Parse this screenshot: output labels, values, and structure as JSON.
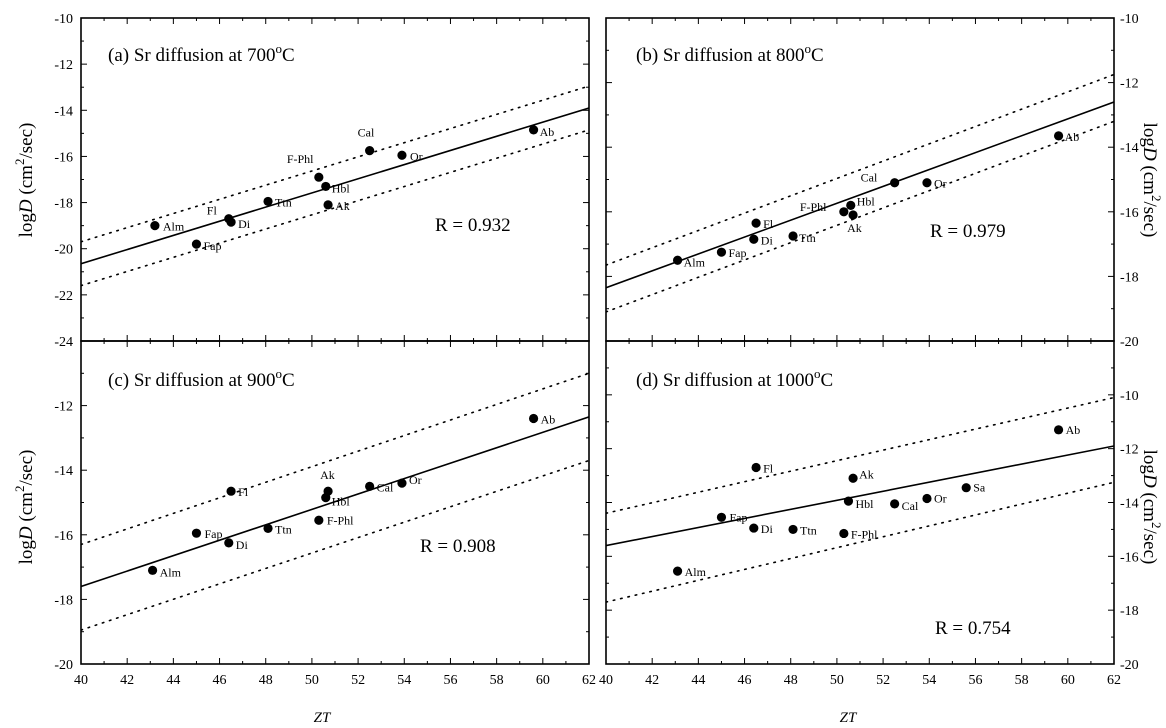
{
  "figure": {
    "xlabel_left": "ZT",
    "xlabel_right": "ZT",
    "ylabel": "logD (cm²/sec)",
    "ylabel_parts": {
      "log": "log",
      "D": "D",
      "unit": " (cm",
      "sup": "2",
      "end": "/sec)"
    },
    "title_prefix": "Sr diffusion at ",
    "degree": "o"
  },
  "chart_data": [
    {
      "type": "scatter",
      "panel": "a",
      "title": "(a) Sr diffusion at 700°C",
      "title_parts": {
        "prefix": "(a) Sr diffusion at 700",
        "sup": "o",
        "suffix": "C"
      },
      "xlabel": "ZT",
      "ylabel": "logD (cm²/sec)",
      "xlim": [
        40,
        62
      ],
      "ylim": [
        -24,
        -10
      ],
      "yticks": [
        -24,
        -22,
        -20,
        -18,
        -16,
        -14,
        -12,
        -10
      ],
      "xticks": [
        40,
        42,
        44,
        46,
        48,
        50,
        52,
        54,
        56,
        58,
        60,
        62
      ],
      "r_text": "R = 0.932",
      "points": [
        {
          "label": "Alm",
          "x": 43.2,
          "y": -19.0
        },
        {
          "label": "Fl",
          "x": 46.4,
          "y": -18.7
        },
        {
          "label": "Di",
          "x": 46.5,
          "y": -18.85
        },
        {
          "label": "Fap",
          "x": 45.0,
          "y": -19.8
        },
        {
          "label": "Ttn",
          "x": 48.1,
          "y": -17.95
        },
        {
          "label": "F-Phl",
          "x": 50.3,
          "y": -16.9
        },
        {
          "label": "Hbl",
          "x": 50.6,
          "y": -17.3
        },
        {
          "label": "Ak",
          "x": 50.7,
          "y": -18.1
        },
        {
          "label": "Cal",
          "x": 52.5,
          "y": -15.75
        },
        {
          "label": "Or",
          "x": 53.9,
          "y": -15.95
        },
        {
          "label": "Ab",
          "x": 59.6,
          "y": -14.85
        }
      ],
      "fit_line": {
        "y_at_40": -20.65,
        "y_at_62": -13.9
      },
      "bounds_upper": {
        "y_at_40": -19.7,
        "y_at_62": -12.95
      },
      "bounds_lower": {
        "y_at_40": -21.6,
        "y_at_62": -14.85
      }
    },
    {
      "type": "scatter",
      "panel": "b",
      "title": "(b) Sr diffusion at 800°C",
      "title_parts": {
        "prefix": "(b) Sr diffusion at 800",
        "sup": "o",
        "suffix": "C"
      },
      "xlabel": "ZT",
      "ylabel": "logD (cm²/sec)",
      "xlim": [
        40,
        62
      ],
      "ylim": [
        -20,
        -10
      ],
      "yticks": [
        -20,
        -18,
        -16,
        -14,
        -12,
        -10
      ],
      "xticks": [
        40,
        42,
        44,
        46,
        48,
        50,
        52,
        54,
        56,
        58,
        60,
        62
      ],
      "r_text": "R = 0.979",
      "points": [
        {
          "label": "Alm",
          "x": 43.1,
          "y": -17.5
        },
        {
          "label": "Fap",
          "x": 45.0,
          "y": -17.25
        },
        {
          "label": "Di",
          "x": 46.4,
          "y": -16.85
        },
        {
          "label": "Fl",
          "x": 46.5,
          "y": -16.35
        },
        {
          "label": "Ttn",
          "x": 48.1,
          "y": -16.75
        },
        {
          "label": "F-Phl",
          "x": 50.3,
          "y": -16.0
        },
        {
          "label": "Hbl",
          "x": 50.6,
          "y": -15.8
        },
        {
          "label": "Ak",
          "x": 50.7,
          "y": -16.1
        },
        {
          "label": "Cal",
          "x": 52.5,
          "y": -15.1
        },
        {
          "label": "Or",
          "x": 53.9,
          "y": -15.1
        },
        {
          "label": "Ab",
          "x": 59.6,
          "y": -13.65
        }
      ],
      "fit_line": {
        "y_at_40": -18.35,
        "y_at_62": -12.6
      },
      "bounds_upper": {
        "y_at_40": -17.65,
        "y_at_62": -11.75
      },
      "bounds_lower": {
        "y_at_40": -19.1,
        "y_at_62": -13.2
      }
    },
    {
      "type": "scatter",
      "panel": "c",
      "title": "(c) Sr diffusion at 900°C",
      "title_parts": {
        "prefix": "(c) Sr diffusion at 900",
        "sup": "o",
        "suffix": "C"
      },
      "xlabel": "ZT",
      "ylabel": "logD (cm²/sec)",
      "xlim": [
        40,
        62
      ],
      "ylim": [
        -20,
        -10
      ],
      "yticks": [
        -20,
        -18,
        -16,
        -14,
        -12
      ],
      "xticks": [
        40,
        42,
        44,
        46,
        48,
        50,
        52,
        54,
        56,
        58,
        60,
        62
      ],
      "r_text": "R = 0.908",
      "points": [
        {
          "label": "Alm",
          "x": 43.1,
          "y": -17.1
        },
        {
          "label": "Fap",
          "x": 45.0,
          "y": -15.95
        },
        {
          "label": "Di",
          "x": 46.4,
          "y": -16.25
        },
        {
          "label": "Fl",
          "x": 46.5,
          "y": -14.65
        },
        {
          "label": "Ttn",
          "x": 48.1,
          "y": -15.8
        },
        {
          "label": "F-Phl",
          "x": 50.3,
          "y": -15.55
        },
        {
          "label": "Hbl",
          "x": 50.6,
          "y": -14.85
        },
        {
          "label": "Ak",
          "x": 50.7,
          "y": -14.65
        },
        {
          "label": "Cal",
          "x": 52.5,
          "y": -14.5
        },
        {
          "label": "Or",
          "x": 53.9,
          "y": -14.4
        },
        {
          "label": "Ab",
          "x": 59.6,
          "y": -12.4
        }
      ],
      "fit_line": {
        "y_at_40": -17.6,
        "y_at_62": -12.35
      },
      "bounds_upper": {
        "y_at_40": -16.3,
        "y_at_62": -11.0
      },
      "bounds_lower": {
        "y_at_40": -18.95,
        "y_at_62": -13.7
      }
    },
    {
      "type": "scatter",
      "panel": "d",
      "title": "(d) Sr diffusion at 1000°C",
      "title_parts": {
        "prefix": "(d) Sr diffusion at 1000",
        "sup": "o",
        "suffix": "C"
      },
      "xlabel": "ZT",
      "ylabel": "logD (cm²/sec)",
      "xlim": [
        40,
        62
      ],
      "ylim": [
        -20,
        -8
      ],
      "yticks": [
        -20,
        -18,
        -16,
        -14,
        -12,
        -10
      ],
      "xticks": [
        40,
        42,
        44,
        46,
        48,
        50,
        52,
        54,
        56,
        58,
        60,
        62
      ],
      "r_text": "R = 0.754",
      "points": [
        {
          "label": "Alm",
          "x": 43.1,
          "y": -16.55
        },
        {
          "label": "Fap",
          "x": 45.0,
          "y": -14.55
        },
        {
          "label": "Di",
          "x": 46.4,
          "y": -14.95
        },
        {
          "label": "Fl",
          "x": 46.5,
          "y": -12.7
        },
        {
          "label": "Ttn",
          "x": 48.1,
          "y": -15.0
        },
        {
          "label": "F-Phl",
          "x": 50.3,
          "y": -15.15
        },
        {
          "label": "Hbl",
          "x": 50.5,
          "y": -13.95
        },
        {
          "label": "Ak",
          "x": 50.7,
          "y": -13.1
        },
        {
          "label": "Cal",
          "x": 52.5,
          "y": -14.05
        },
        {
          "label": "Or",
          "x": 53.9,
          "y": -13.85
        },
        {
          "label": "Sa",
          "x": 55.6,
          "y": -13.45
        },
        {
          "label": "Ab",
          "x": 59.6,
          "y": -11.3
        }
      ],
      "fit_line": {
        "y_at_40": -15.6,
        "y_at_62": -11.9
      },
      "bounds_upper": {
        "y_at_40": -14.4,
        "y_at_62": -10.1
      },
      "bounds_lower": {
        "y_at_40": -17.7,
        "y_at_62": -13.25
      }
    }
  ]
}
